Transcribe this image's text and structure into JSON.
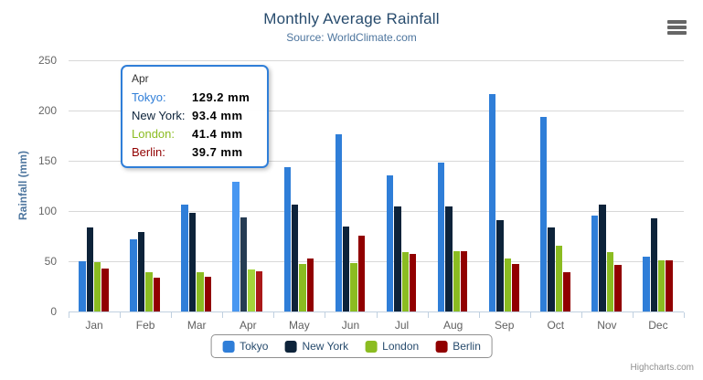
{
  "title": "Monthly Average Rainfall",
  "subtitle": "Source: WorldClimate.com",
  "y_axis_title": "Rainfall (mm)",
  "credits": "Highcharts.com",
  "export_menu_icon": "hamburger-icon",
  "tooltip": {
    "header": "Apr",
    "rows": [
      {
        "name": "Tokyo:",
        "value": "129.2 mm",
        "color": "#2f7ed8"
      },
      {
        "name": "New York:",
        "value": "93.4 mm",
        "color": "#0d233a"
      },
      {
        "name": "London:",
        "value": "41.4 mm",
        "color": "#8bbc21"
      },
      {
        "name": "Berlin:",
        "value": "39.7 mm",
        "color": "#910000"
      }
    ]
  },
  "chart_data": {
    "type": "bar",
    "title": "Monthly Average Rainfall",
    "subtitle": "Source: WorldClimate.com",
    "xlabel": "",
    "ylabel": "Rainfall (mm)",
    "ylim": [
      0,
      250
    ],
    "yticks": [
      0,
      50,
      100,
      150,
      200,
      250
    ],
    "grid": true,
    "legend_position": "bottom",
    "hover_category": "Apr",
    "categories": [
      "Jan",
      "Feb",
      "Mar",
      "Apr",
      "May",
      "Jun",
      "Jul",
      "Aug",
      "Sep",
      "Oct",
      "Nov",
      "Dec"
    ],
    "series": [
      {
        "name": "Tokyo",
        "color": "#2f7ed8",
        "values": [
          49.9,
          71.5,
          106.4,
          129.2,
          144.0,
          176.0,
          135.6,
          148.5,
          216.4,
          194.1,
          95.6,
          54.4
        ]
      },
      {
        "name": "New York",
        "color": "#0d233a",
        "values": [
          83.6,
          78.8,
          98.5,
          93.4,
          106.0,
          84.5,
          105.0,
          104.3,
          91.2,
          83.5,
          106.6,
          92.3
        ]
      },
      {
        "name": "London",
        "color": "#8bbc21",
        "values": [
          48.9,
          38.8,
          39.3,
          41.4,
          47.0,
          48.3,
          59.0,
          59.6,
          52.4,
          65.2,
          59.3,
          51.2
        ]
      },
      {
        "name": "Berlin",
        "color": "#910000",
        "values": [
          42.4,
          33.2,
          34.5,
          39.7,
          52.6,
          75.5,
          57.4,
          60.4,
          47.6,
          39.1,
          46.8,
          51.1
        ]
      }
    ]
  },
  "style_colors": {
    "title": "#274b6d",
    "subtitle": "#4d759e",
    "y_axis_title": "#4d759e",
    "tick_label": "#666666",
    "axis_line": "#c0d0e0",
    "gridline": "#d8d8d8",
    "tooltip_border": "#2f7ed8",
    "legend_border": "#909090",
    "credits": "#909090"
  }
}
